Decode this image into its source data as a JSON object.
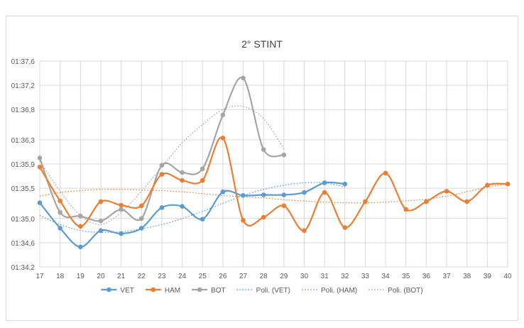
{
  "chart_data": {
    "type": "line",
    "title": "2° STINT",
    "xlabel": "",
    "ylabel": "",
    "x": [
      17,
      18,
      19,
      20,
      21,
      22,
      23,
      24,
      25,
      26,
      27,
      28,
      29,
      30,
      31,
      32,
      33,
      34,
      35,
      36,
      37,
      38,
      39,
      40
    ],
    "x_tick_labels": [
      "17",
      "18",
      "19",
      "20",
      "21",
      "22",
      "23",
      "24",
      "25",
      "26",
      "27",
      "28",
      "29",
      "30",
      "31",
      "32",
      "33",
      "34",
      "35",
      "36",
      "37",
      "38",
      "39",
      "40"
    ],
    "y_ticks": [
      {
        "label": "01:34,2",
        "value": 94.2
      },
      {
        "label": "01:34,6",
        "value": 94.6
      },
      {
        "label": "01:35,0",
        "value": 95.0
      },
      {
        "label": "01:35,5",
        "value": 95.5
      },
      {
        "label": "01:35,9",
        "value": 95.9
      },
      {
        "label": "01:36,3",
        "value": 96.3
      },
      {
        "label": "01:36,8",
        "value": 96.8
      },
      {
        "label": "01:37,2",
        "value": 97.2
      },
      {
        "label": "01:37,6",
        "value": 97.6
      }
    ],
    "ylim": [
      94.2,
      97.6
    ],
    "series": [
      {
        "name": "VET",
        "color": "#5B9BD5",
        "x": [
          17,
          18,
          19,
          20,
          21,
          22,
          23,
          24,
          25,
          26,
          27,
          28,
          29,
          30,
          31,
          32
        ],
        "values": [
          95.26,
          94.84,
          94.53,
          94.8,
          94.75,
          94.84,
          95.18,
          95.2,
          94.99,
          95.44,
          95.38,
          95.39,
          95.39,
          95.43,
          95.59,
          95.57
        ]
      },
      {
        "name": "HAM",
        "color": "#ED7D31",
        "x": [
          17,
          18,
          19,
          20,
          21,
          22,
          23,
          24,
          25,
          26,
          27,
          28,
          29,
          30,
          31,
          32,
          33,
          34,
          35,
          36,
          37,
          38,
          39,
          40
        ],
        "values": [
          95.85,
          95.29,
          94.87,
          95.28,
          95.22,
          95.21,
          95.73,
          95.63,
          95.63,
          96.33,
          94.97,
          95.02,
          95.21,
          94.8,
          95.43,
          94.85,
          95.28,
          95.75,
          95.15,
          95.28,
          95.45,
          95.28,
          95.55,
          95.57
        ]
      },
      {
        "name": "BOT",
        "color": "#A5A5A5",
        "x": [
          17,
          18,
          19,
          20,
          21,
          22,
          23,
          24,
          25,
          26,
          27,
          28,
          29
        ],
        "values": [
          96.0,
          95.1,
          95.04,
          94.96,
          95.15,
          95.0,
          95.88,
          95.76,
          95.82,
          96.71,
          97.32,
          96.14,
          96.05
        ]
      }
    ],
    "trendlines": [
      {
        "name": "Poli. (VET)",
        "color": "#5B9BD5",
        "x": [
          17,
          18,
          19,
          20,
          21,
          22,
          23,
          24,
          25,
          26,
          27,
          28,
          29,
          30,
          31,
          32
        ],
        "values": [
          95.05,
          94.9,
          94.8,
          94.77,
          94.78,
          94.83,
          94.9,
          95.0,
          95.12,
          95.25,
          95.38,
          95.48,
          95.55,
          95.59,
          95.59,
          95.52
        ]
      },
      {
        "name": "Poli. (HAM)",
        "color": "#ED7D31",
        "x": [
          17,
          18,
          19,
          20,
          21,
          22,
          23,
          24,
          25,
          26,
          27,
          28,
          29,
          30,
          31,
          32,
          33,
          34,
          35,
          36,
          37,
          38,
          39,
          40
        ],
        "values": [
          95.37,
          95.43,
          95.46,
          95.48,
          95.48,
          95.47,
          95.46,
          95.44,
          95.41,
          95.38,
          95.36,
          95.34,
          95.31,
          95.29,
          95.27,
          95.26,
          95.26,
          95.27,
          95.29,
          95.32,
          95.37,
          95.44,
          95.52,
          95.57
        ]
      },
      {
        "name": "Poli. (BOT)",
        "color": "#A5A5A5",
        "x": [
          17,
          18,
          19,
          20,
          21,
          22,
          23,
          24,
          25,
          26,
          27,
          28,
          29
        ],
        "values": [
          95.95,
          95.45,
          95.05,
          94.9,
          95.1,
          95.45,
          95.85,
          96.25,
          96.55,
          96.8,
          96.85,
          96.65,
          96.15
        ]
      }
    ],
    "legend": {
      "placement": "bottom",
      "entries": [
        "VET",
        "HAM",
        "BOT",
        "Poli. (VET)",
        "Poli. (HAM)",
        "Poli. (BOT)"
      ]
    },
    "grid": {
      "horizontal": true,
      "vertical": true
    },
    "colors": {
      "gridline": "#d9d9d9",
      "axis_text": "#595959",
      "title": "#404040",
      "frame_border": "#d9d9d9"
    }
  }
}
